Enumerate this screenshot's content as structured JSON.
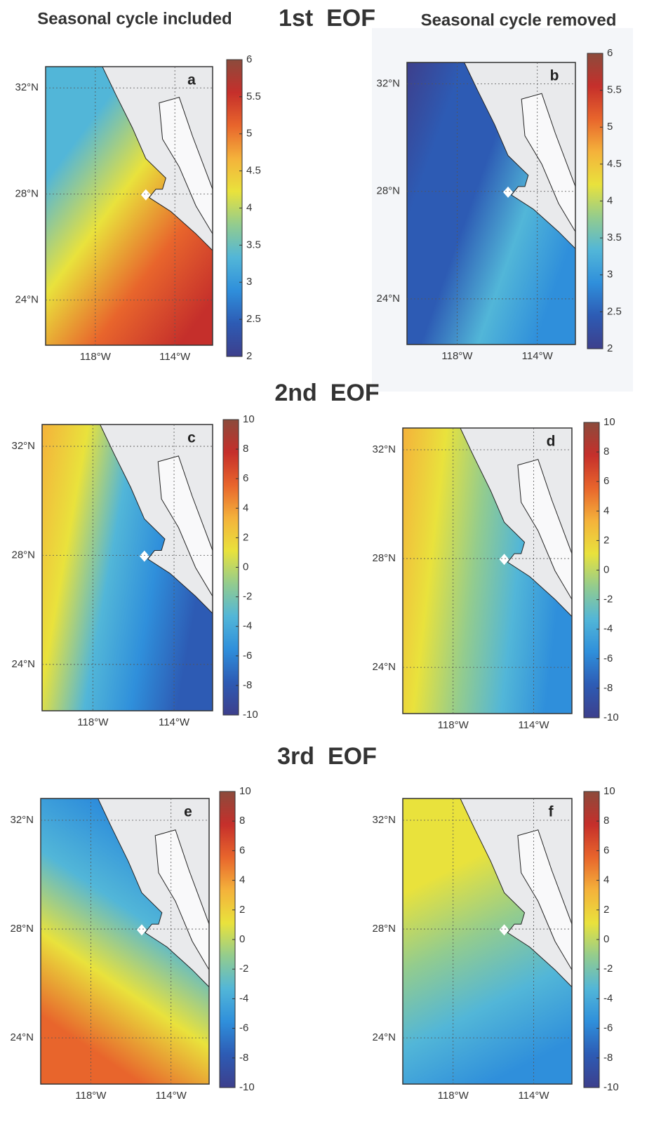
{
  "headers": {
    "left": "Seasonal cycle included",
    "right": "Seasonal cycle removed"
  },
  "lat_lim": [
    22.3,
    32.8
  ],
  "lon_lim": [
    -120.5,
    -112.1
  ],
  "lat_ticks": [
    {
      "value": 32,
      "label": "32°N"
    },
    {
      "value": 28,
      "label": "28°N"
    },
    {
      "value": 24,
      "label": "24°N"
    }
  ],
  "lon_ticks": [
    {
      "value": -118,
      "label": "118°W"
    },
    {
      "value": -114,
      "label": "114°W"
    }
  ],
  "colormap": [
    "#3d3f8c",
    "#2d5bb4",
    "#2f8fdb",
    "#52b6d8",
    "#93cc8e",
    "#e9e23c",
    "#f4b23b",
    "#e8652c",
    "#c52f2b",
    "#8c4b3c"
  ],
  "rows": [
    {
      "title": "1st  EOF",
      "panels": [
        {
          "label": "a",
          "colorbar": {
            "lim": [
              2,
              6
            ],
            "ticks": [
              6,
              5.5,
              5,
              4.5,
              4,
              3.5,
              3,
              2.5,
              2
            ]
          }
        },
        {
          "label": "b",
          "colorbar": {
            "lim": [
              2,
              6
            ],
            "ticks": [
              6,
              5.5,
              5,
              4.5,
              4,
              3.5,
              3,
              2.5,
              2
            ]
          }
        }
      ]
    },
    {
      "title": "2nd  EOF",
      "panels": [
        {
          "label": "c",
          "colorbar": {
            "lim": [
              -10,
              10
            ],
            "ticks": [
              10,
              8,
              6,
              4,
              2,
              0,
              -2,
              -4,
              -6,
              -8,
              -10
            ]
          }
        },
        {
          "label": "d",
          "colorbar": {
            "lim": [
              -10,
              10
            ],
            "ticks": [
              10,
              8,
              6,
              4,
              2,
              0,
              -2,
              -4,
              -6,
              -8,
              -10
            ]
          }
        }
      ]
    },
    {
      "title": "3rd  EOF",
      "panels": [
        {
          "label": "e",
          "colorbar": {
            "lim": [
              -10,
              10
            ],
            "ticks": [
              10,
              8,
              6,
              4,
              2,
              0,
              -2,
              -4,
              -6,
              -8,
              -10
            ]
          }
        },
        {
          "label": "f",
          "colorbar": {
            "lim": [
              -10,
              10
            ],
            "ticks": [
              10,
              8,
              6,
              4,
              2,
              0,
              -2,
              -4,
              -6,
              -8,
              -10
            ]
          }
        }
      ]
    }
  ]
}
